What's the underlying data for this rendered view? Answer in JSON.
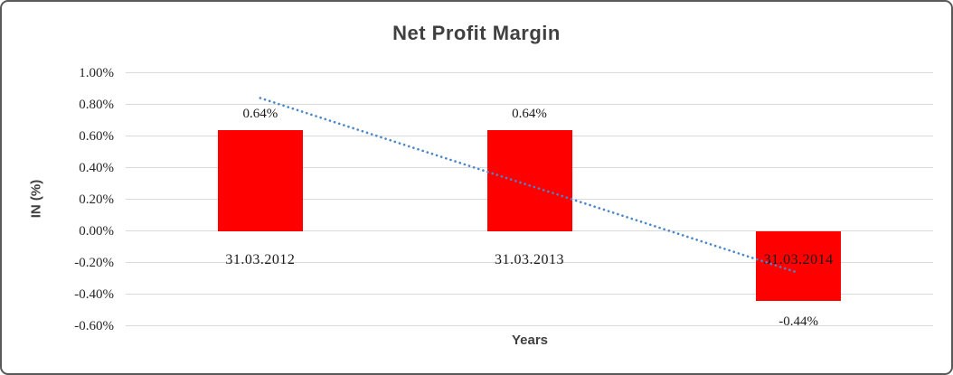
{
  "chart_data": {
    "type": "bar",
    "title": "Net Profit Margin",
    "xlabel": "Years",
    "ylabel": "IN (%)",
    "categories": [
      "31.03.2012",
      "31.03.2013",
      "31.03.2014"
    ],
    "series": [
      {
        "name": "Net Profit Margin",
        "values": [
          0.64,
          0.64,
          -0.44
        ]
      }
    ],
    "data_labels": [
      "0.64%",
      "0.64%",
      "-0.44%"
    ],
    "y_ticks": [
      {
        "label": "1.00%",
        "value": 1.0
      },
      {
        "label": "0.80%",
        "value": 0.8
      },
      {
        "label": "0.60%",
        "value": 0.6
      },
      {
        "label": "0.40%",
        "value": 0.4
      },
      {
        "label": "0.20%",
        "value": 0.2
      },
      {
        "label": "0.00%",
        "value": 0.0
      },
      {
        "label": "-0.20%",
        "value": -0.2
      },
      {
        "label": "-0.40%",
        "value": -0.4
      },
      {
        "label": "-0.60%",
        "value": -0.6
      }
    ],
    "ylim": [
      -0.6,
      1.0
    ],
    "grid": true,
    "legend": "none",
    "trendline": {
      "style": "dotted",
      "color": "#4a86c8",
      "start_value": 0.84,
      "end_value": -0.26
    },
    "colors": {
      "bar": "#ff0000",
      "title": "#404040",
      "axis_title": "#404040",
      "tick_label": "#262626",
      "data_label": "#1a1a1a",
      "gridline": "#d9d9d9",
      "border": "#595959",
      "background": "#ffffff"
    }
  }
}
